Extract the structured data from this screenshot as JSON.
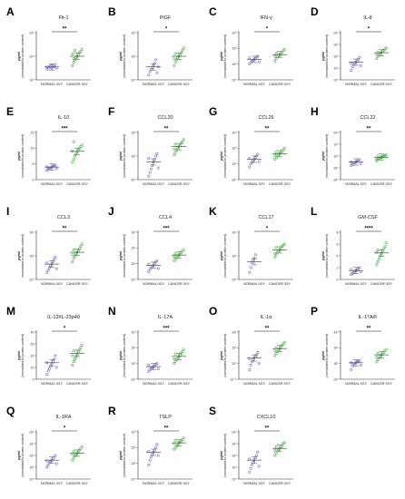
{
  "figure": {
    "ylabel_line1": "pg/ml",
    "ylabel_line2": "(normalised to protein content)",
    "group_labels": [
      "NORMAL 0GY",
      "CANCER 0GY"
    ],
    "colors": {
      "normal": "#7b6fd1",
      "cancer": "#3fbf3f",
      "mean_line": "#555555",
      "axis": "#333333"
    }
  },
  "chart_data": [
    {
      "letter": "A",
      "title": "Flt-1",
      "type": "scatter",
      "scale": "log",
      "sig": "**",
      "tick_labels": [
        "10³",
        "10⁴",
        "10⁵"
      ],
      "ylim_log": [
        3,
        5
      ],
      "normal": {
        "mean": 3.55,
        "points": [
          3.45,
          3.5,
          3.55,
          3.6,
          3.5,
          3.6,
          3.55,
          3.65,
          3.5,
          3.55
        ]
      },
      "cancer": {
        "mean": 4.0,
        "points": [
          3.6,
          3.75,
          3.85,
          3.95,
          4.0,
          4.05,
          4.15,
          4.2,
          4.3,
          4.1,
          3.9,
          4.25
        ]
      }
    },
    {
      "letter": "B",
      "title": "PlGF",
      "type": "scatter",
      "scale": "log",
      "sig": "*",
      "tick_labels": [
        "10⁰",
        "10¹",
        "10²"
      ],
      "ylim_log": [
        0,
        2
      ],
      "normal": {
        "mean": 0.55,
        "points": [
          0.2,
          0.35,
          0.45,
          0.5,
          0.6,
          0.7,
          0.85,
          0.3,
          0.55
        ]
      },
      "cancer": {
        "mean": 1.0,
        "points": [
          0.6,
          0.75,
          0.85,
          0.95,
          1.0,
          1.05,
          1.15,
          1.25,
          1.35,
          0.9,
          1.1
        ]
      }
    },
    {
      "letter": "C",
      "title": "IFN-γ",
      "type": "scatter",
      "scale": "log",
      "sig": "*",
      "tick_labels": [
        "10⁰",
        "10¹",
        "10²",
        "10³"
      ],
      "ylim_log": [
        0,
        3
      ],
      "normal": {
        "mean": 1.3,
        "points": [
          1.0,
          1.1,
          1.2,
          1.25,
          1.3,
          1.35,
          1.45,
          1.5,
          1.15,
          1.4
        ]
      },
      "cancer": {
        "mean": 1.6,
        "points": [
          1.2,
          1.35,
          1.45,
          1.55,
          1.6,
          1.65,
          1.75,
          1.85,
          1.95,
          1.5,
          1.7
        ]
      }
    },
    {
      "letter": "D",
      "title": "IL-8",
      "type": "scatter",
      "scale": "log",
      "sig": "*",
      "tick_labels": [
        "10⁰",
        "10¹",
        "10²",
        "10³",
        "10⁴"
      ],
      "ylim_log": [
        0,
        4
      ],
      "normal": {
        "mean": 1.5,
        "points": [
          0.8,
          1.1,
          1.3,
          1.45,
          1.5,
          1.6,
          1.75,
          1.9,
          1.2,
          1.4
        ]
      },
      "cancer": {
        "mean": 2.3,
        "points": [
          1.8,
          2.0,
          2.1,
          2.25,
          2.3,
          2.4,
          2.5,
          2.6,
          2.7,
          2.2,
          2.35
        ]
      }
    },
    {
      "letter": "E",
      "title": "IL-10",
      "type": "scatter",
      "scale": "linear",
      "sig": "***",
      "tick_labels": [
        "0",
        "5",
        "10",
        "15"
      ],
      "ylim": [
        0,
        15
      ],
      "normal": {
        "mean": 4.0,
        "points": [
          3.0,
          3.3,
          3.6,
          3.8,
          4.0,
          4.2,
          4.4,
          4.6,
          3.5,
          4.1
        ]
      },
      "cancer": {
        "mean": 9.0,
        "points": [
          5.5,
          6.5,
          7.5,
          8.2,
          8.8,
          9.4,
          10.0,
          10.5,
          11.0,
          9.0,
          12.0
        ]
      }
    },
    {
      "letter": "F",
      "title": "CCL20",
      "type": "scatter",
      "scale": "log",
      "sig": "**",
      "tick_labels": [
        "10⁰",
        "10¹",
        "10²"
      ],
      "ylim_log": [
        0,
        2
      ],
      "normal": {
        "mean": 0.75,
        "points": [
          0.15,
          0.3,
          0.45,
          0.6,
          0.75,
          0.85,
          1.0,
          1.1,
          0.5,
          0.9
        ]
      },
      "cancer": {
        "mean": 1.4,
        "points": [
          1.05,
          1.15,
          1.25,
          1.35,
          1.4,
          1.45,
          1.55,
          1.6,
          1.7,
          1.3,
          1.5
        ]
      }
    },
    {
      "letter": "G",
      "title": "CCL26",
      "type": "scatter",
      "scale": "log",
      "sig": "**",
      "tick_labels": [
        "10⁰",
        "10¹",
        "10²",
        "10³"
      ],
      "ylim_log": [
        0,
        3
      ],
      "normal": {
        "mean": 1.3,
        "points": [
          0.8,
          1.0,
          1.1,
          1.2,
          1.3,
          1.4,
          1.5,
          1.6,
          1.15,
          1.35
        ]
      },
      "cancer": {
        "mean": 1.65,
        "points": [
          1.3,
          1.4,
          1.5,
          1.6,
          1.65,
          1.7,
          1.8,
          1.9,
          2.0,
          1.55,
          1.75
        ]
      }
    },
    {
      "letter": "H",
      "title": "CCL22",
      "type": "scatter",
      "scale": "log",
      "sig": "**",
      "tick_labels": [
        "10⁰",
        "10¹",
        "10²",
        "10³",
        "10⁴"
      ],
      "ylim_log": [
        0,
        4
      ],
      "normal": {
        "mean": 1.5,
        "points": [
          1.2,
          1.3,
          1.4,
          1.45,
          1.5,
          1.55,
          1.6,
          1.7,
          1.35,
          1.5
        ]
      },
      "cancer": {
        "mean": 1.9,
        "points": [
          1.6,
          1.7,
          1.8,
          1.85,
          1.9,
          1.95,
          2.0,
          2.05,
          2.1,
          1.75,
          2.0
        ]
      }
    },
    {
      "letter": "I",
      "title": "CCL3",
      "type": "scatter",
      "scale": "log",
      "sig": "**",
      "tick_labels": [
        "10⁰",
        "10¹",
        "10²"
      ],
      "ylim_log": [
        0,
        2
      ],
      "normal": {
        "mean": 0.65,
        "points": [
          0.3,
          0.4,
          0.5,
          0.6,
          0.65,
          0.75,
          0.85,
          0.95,
          0.45,
          0.7
        ]
      },
      "cancer": {
        "mean": 1.15,
        "points": [
          0.75,
          0.9,
          1.0,
          1.1,
          1.15,
          1.2,
          1.3,
          1.4,
          1.5,
          1.05,
          1.25
        ]
      }
    },
    {
      "letter": "J",
      "title": "CCL4",
      "type": "scatter",
      "scale": "log",
      "sig": "***",
      "tick_labels": [
        "10⁰",
        "10¹",
        "10²",
        "10³"
      ],
      "ylim_log": [
        0,
        3
      ],
      "normal": {
        "mean": 0.9,
        "points": [
          0.5,
          0.65,
          0.75,
          0.85,
          0.9,
          1.0,
          1.1,
          1.2,
          0.7,
          0.95
        ]
      },
      "cancer": {
        "mean": 1.55,
        "points": [
          1.2,
          1.3,
          1.4,
          1.5,
          1.55,
          1.6,
          1.7,
          1.8,
          1.9,
          1.45,
          1.65
        ]
      }
    },
    {
      "letter": "K",
      "title": "CCL17",
      "type": "scatter",
      "scale": "log",
      "sig": "*",
      "tick_labels": [
        "10⁰",
        "10¹",
        "10²"
      ],
      "ylim_log": [
        0,
        2
      ],
      "normal": {
        "mean": 0.75,
        "points": [
          0.3,
          0.5,
          0.7,
          0.8,
          0.9,
          1.05
        ]
      },
      "cancer": {
        "mean": 1.25,
        "points": [
          0.95,
          1.05,
          1.15,
          1.2,
          1.25,
          1.3,
          1.4,
          1.45,
          1.5,
          1.1,
          1.35
        ]
      }
    },
    {
      "letter": "L",
      "title": "GM-CSF",
      "type": "scatter",
      "scale": "linear",
      "sig": "****",
      "tick_labels": [
        "0",
        "2",
        "4",
        "6",
        "8"
      ],
      "ylim": [
        0,
        8
      ],
      "normal": {
        "mean": 1.5,
        "points": [
          0.8,
          1.0,
          1.2,
          1.4,
          1.5,
          1.6,
          1.8,
          2.0,
          1.3,
          1.7
        ]
      },
      "cancer": {
        "mean": 4.5,
        "points": [
          2.5,
          3.0,
          3.5,
          4.0,
          4.4,
          4.8,
          5.2,
          5.6,
          6.2,
          4.6,
          5.0
        ]
      }
    },
    {
      "letter": "M",
      "title": "IL-12/IL-23p40",
      "type": "scatter",
      "scale": "linear",
      "sig": "*",
      "tick_labels": [
        "0",
        "10",
        "20",
        "30",
        "40"
      ],
      "ylim": [
        0,
        40
      ],
      "normal": {
        "mean": 14,
        "points": [
          4,
          7,
          9,
          11,
          13,
          15,
          17,
          20,
          10,
          14
        ]
      },
      "cancer": {
        "mean": 22,
        "points": [
          12,
          15,
          17,
          19,
          21,
          23,
          25,
          27,
          29,
          20,
          24
        ]
      }
    },
    {
      "letter": "N",
      "title": "IL-17A",
      "type": "scatter",
      "scale": "log",
      "sig": "***",
      "tick_labels": [
        "10⁰",
        "10¹",
        "10²",
        "10³"
      ],
      "ylim_log": [
        0,
        3
      ],
      "normal": {
        "mean": 0.8,
        "points": [
          0.5,
          0.6,
          0.7,
          0.75,
          0.8,
          0.85,
          0.95,
          1.0,
          0.65,
          0.9
        ]
      },
      "cancer": {
        "mean": 1.45,
        "points": [
          1.0,
          1.15,
          1.25,
          1.35,
          1.45,
          1.55,
          1.65,
          1.75,
          1.9,
          1.3,
          1.6
        ]
      }
    },
    {
      "letter": "O",
      "title": "IL-1α",
      "type": "scatter",
      "scale": "log",
      "sig": "**",
      "tick_labels": [
        "10⁻¹",
        "10⁰",
        "10¹",
        "10²"
      ],
      "ylim_log": [
        -1,
        2
      ],
      "normal": {
        "mean": 0.35,
        "points": [
          -0.4,
          -0.1,
          0.1,
          0.25,
          0.35,
          0.45,
          0.55,
          0.7,
          0.0,
          0.3
        ]
      },
      "cancer": {
        "mean": 0.95,
        "points": [
          0.5,
          0.65,
          0.75,
          0.85,
          0.95,
          1.05,
          1.15,
          1.25,
          1.35,
          0.8,
          1.0
        ]
      }
    },
    {
      "letter": "P",
      "title": "IL-17A/F",
      "type": "scatter",
      "scale": "log",
      "sig": "**",
      "tick_labels": [
        "10⁰",
        "10¹",
        "10²",
        "10³"
      ],
      "ylim_log": [
        0,
        3
      ],
      "normal": {
        "mean": 1.05,
        "points": [
          0.6,
          0.85,
          0.95,
          1.0,
          1.05,
          1.1,
          1.15,
          1.2,
          0.9,
          1.05
        ]
      },
      "cancer": {
        "mean": 1.55,
        "points": [
          1.1,
          1.25,
          1.35,
          1.45,
          1.55,
          1.6,
          1.7,
          1.8,
          1.9,
          1.4,
          1.65
        ]
      }
    },
    {
      "letter": "Q",
      "title": "IL-1RA",
      "type": "scatter",
      "scale": "log",
      "sig": "*",
      "tick_labels": [
        "10⁰",
        "10¹",
        "10²",
        "10³",
        "10⁴"
      ],
      "ylim_log": [
        0,
        4
      ],
      "normal": {
        "mean": 1.6,
        "points": [
          1.0,
          1.2,
          1.4,
          1.5,
          1.6,
          1.7,
          1.85,
          2.0,
          1.3,
          1.55
        ]
      },
      "cancer": {
        "mean": 2.2,
        "points": [
          1.6,
          1.8,
          1.95,
          2.05,
          2.2,
          2.3,
          2.45,
          2.6,
          2.75,
          2.1,
          2.35
        ]
      }
    },
    {
      "letter": "R",
      "title": "TSLP",
      "type": "scatter",
      "scale": "log",
      "sig": "**",
      "tick_labels": [
        "10⁰",
        "10¹",
        "10²",
        "10³"
      ],
      "ylim_log": [
        0,
        3
      ],
      "normal": {
        "mean": 1.7,
        "points": [
          0.9,
          1.2,
          1.4,
          1.6,
          1.7,
          1.85,
          2.0,
          2.2,
          1.5,
          1.75
        ]
      },
      "cancer": {
        "mean": 2.3,
        "points": [
          1.9,
          2.0,
          2.1,
          2.2,
          2.3,
          2.35,
          2.4,
          2.5,
          2.6,
          2.25,
          2.45
        ]
      }
    },
    {
      "letter": "S",
      "title": "CXCL10",
      "type": "scatter",
      "scale": "log",
      "sig": "**",
      "tick_labels": [
        "10⁰",
        "10¹",
        "10²",
        "10³",
        "10⁴"
      ],
      "ylim_log": [
        0,
        4
      ],
      "normal": {
        "mean": 1.6,
        "points": [
          0.6,
          0.9,
          1.2,
          1.4,
          1.6,
          1.8,
          2.0,
          2.3,
          1.1,
          1.7
        ]
      },
      "cancer": {
        "mean": 2.6,
        "points": [
          2.0,
          2.2,
          2.4,
          2.5,
          2.6,
          2.7,
          2.85,
          3.0,
          3.1,
          2.45,
          2.75
        ]
      }
    }
  ]
}
